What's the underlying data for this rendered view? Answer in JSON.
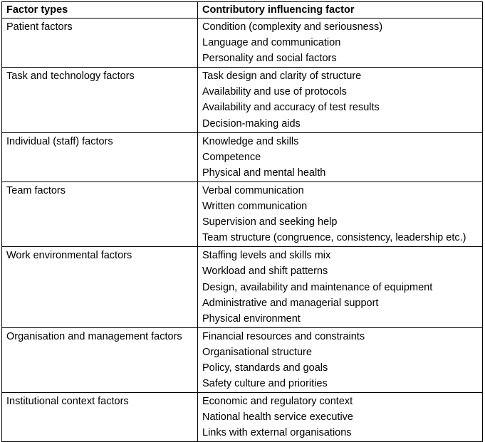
{
  "table": {
    "header": [
      "Factor types",
      "Contributory influencing factor"
    ],
    "rows": [
      {
        "type": "Patient factors",
        "factors": [
          "Condition (complexity and seriousness)",
          "Language and communication",
          "Personality and social factors"
        ]
      },
      {
        "type": "Task and technology factors",
        "factors": [
          "Task design and clarity of structure",
          "Availability and use of protocols",
          "Availability and accuracy of test results",
          "Decision-making aids"
        ]
      },
      {
        "type": "Individual (staff) factors",
        "factors": [
          "Knowledge and skills",
          "Competence",
          "Physical and mental health"
        ]
      },
      {
        "type": "Team factors",
        "factors": [
          "Verbal communication",
          "Written communication",
          "Supervision and seeking help",
          "Team structure (congruence, consistency, leadership etc.)"
        ]
      },
      {
        "type": "Work environmental factors",
        "factors": [
          "Staffing levels and skills mix",
          "Workload and shift patterns",
          "Design, availability and maintenance of equipment",
          "Administrative and managerial support",
          "Physical environment"
        ]
      },
      {
        "type": "Organisation and management factors",
        "factors": [
          "Financial resources and constraints",
          "Organisational structure",
          "Policy, standards and goals",
          "Safety culture and priorities"
        ]
      },
      {
        "type": "Institutional context factors",
        "factors": [
          "Economic and regulatory context",
          "National health service executive",
          "Links with external organisations"
        ]
      }
    ]
  }
}
